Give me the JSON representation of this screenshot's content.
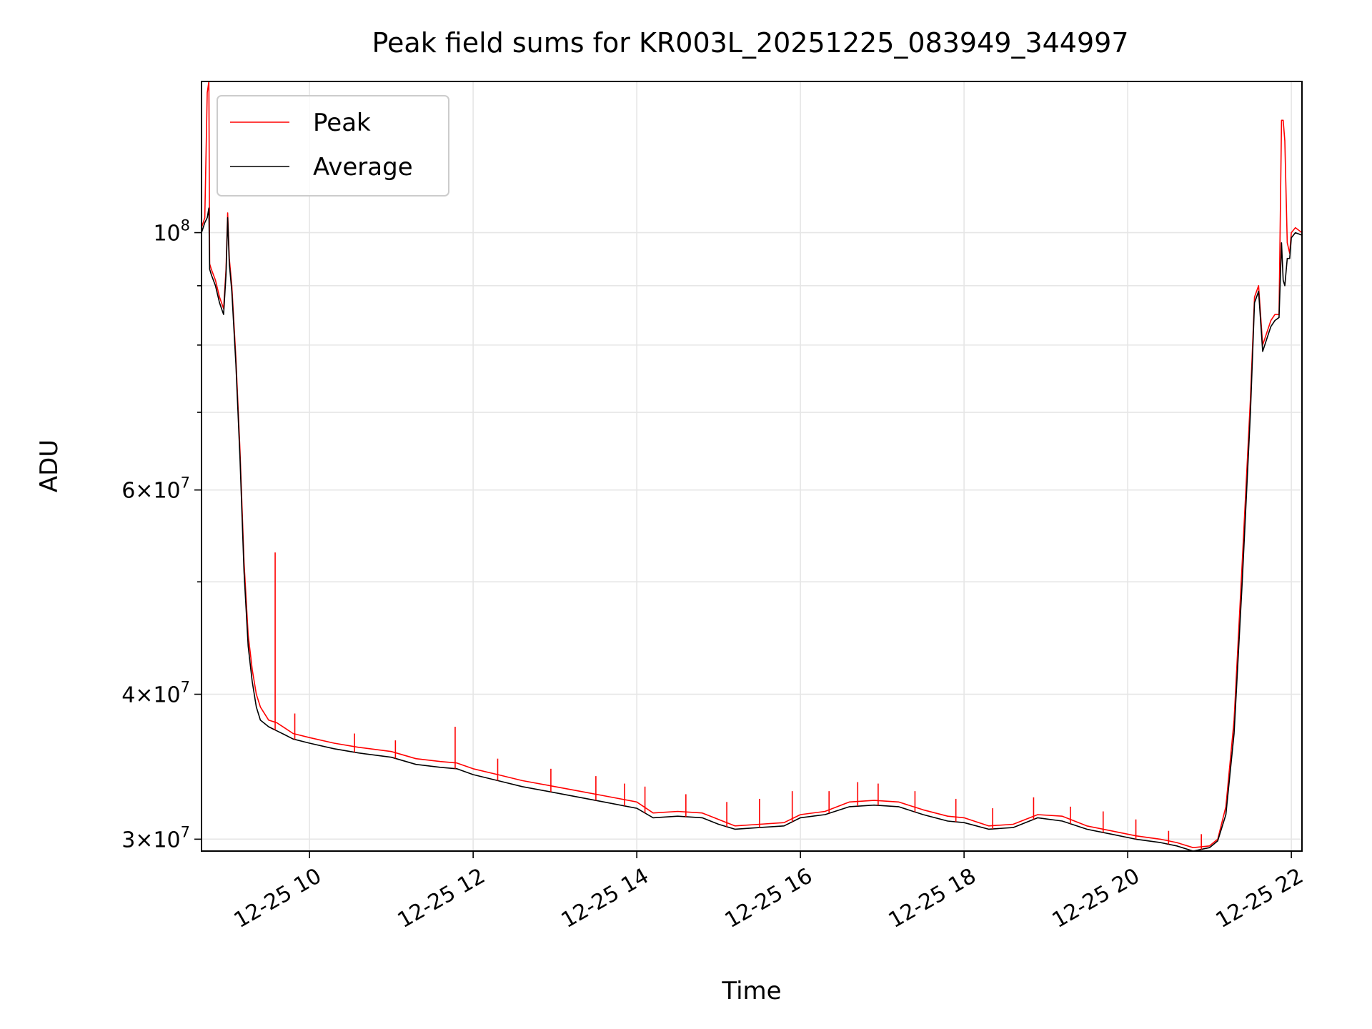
{
  "chart_data": {
    "type": "line",
    "title": "Peak field sums for KR003L_20251225_083949_344997",
    "xlabel": "Time",
    "ylabel": "ADU",
    "yscale": "log",
    "xlim": [
      8.68,
      22.13
    ],
    "ylim": [
      29300000,
      135000000
    ],
    "grid": true,
    "legend_position": "top-left",
    "x_ticks": [
      {
        "value": 10,
        "label": "12-25 10"
      },
      {
        "value": 12,
        "label": "12-25 12"
      },
      {
        "value": 14,
        "label": "12-25 14"
      },
      {
        "value": 16,
        "label": "12-25 16"
      },
      {
        "value": 18,
        "label": "12-25 18"
      },
      {
        "value": 20,
        "label": "12-25 20"
      },
      {
        "value": 22,
        "label": "12-25 22"
      }
    ],
    "y_major_ticks": [
      {
        "value": 30000000,
        "mantissa": "3",
        "exponent": "7"
      },
      {
        "value": 40000000,
        "mantissa": "4",
        "exponent": "7"
      },
      {
        "value": 60000000,
        "mantissa": "6",
        "exponent": "7"
      },
      {
        "value": 100000000,
        "mantissa": "",
        "exponent": "8"
      }
    ],
    "y_minor_ticks": [
      50000000,
      70000000,
      80000000,
      90000000
    ],
    "tick_base": "10",
    "times_sign": "×",
    "series": [
      {
        "name": "Peak",
        "color": "#ff0000",
        "x": [
          8.68,
          8.72,
          8.75,
          8.77,
          8.78,
          8.8,
          8.85,
          8.9,
          8.95,
          8.98,
          9.0,
          9.02,
          9.05,
          9.1,
          9.15,
          9.2,
          9.25,
          9.3,
          9.35,
          9.4,
          9.5,
          9.6,
          9.7,
          9.8,
          10.0,
          10.3,
          10.6,
          11.0,
          11.3,
          11.6,
          11.8,
          12.0,
          12.3,
          12.6,
          13.0,
          13.3,
          13.6,
          14.0,
          14.2,
          14.5,
          14.8,
          15.0,
          15.2,
          15.5,
          15.8,
          16.0,
          16.3,
          16.6,
          16.9,
          17.2,
          17.5,
          17.8,
          18.0,
          18.3,
          18.6,
          18.9,
          19.2,
          19.5,
          19.8,
          20.1,
          20.4,
          20.6,
          20.8,
          21.0,
          21.1,
          21.2,
          21.3,
          21.4,
          21.5,
          21.55,
          21.6,
          21.65,
          21.7,
          21.75,
          21.8,
          21.85,
          21.88,
          21.9,
          21.92,
          21.95,
          21.98,
          22.0,
          22.05,
          22.13
        ],
        "y": [
          101000000,
          103000000,
          132000000,
          135000000,
          94000000,
          93000000,
          91000000,
          88000000,
          86000000,
          93000000,
          104000000,
          95000000,
          90000000,
          78000000,
          65000000,
          52000000,
          45000000,
          42000000,
          40000000,
          39000000,
          38000000,
          37800000,
          37400000,
          37000000,
          36700000,
          36300000,
          36000000,
          35700000,
          35200000,
          35000000,
          34900000,
          34500000,
          34100000,
          33700000,
          33300000,
          33000000,
          32700000,
          32300000,
          31600000,
          31700000,
          31600000,
          31200000,
          30800000,
          30900000,
          31000000,
          31500000,
          31700000,
          32300000,
          32400000,
          32300000,
          31800000,
          31400000,
          31300000,
          30800000,
          30900000,
          31500000,
          31400000,
          30800000,
          30500000,
          30200000,
          30000000,
          29800000,
          29500000,
          29600000,
          30000000,
          32000000,
          38000000,
          52000000,
          72000000,
          88000000,
          90000000,
          80000000,
          82000000,
          84000000,
          85000000,
          85000000,
          125000000,
          125000000,
          120000000,
          98000000,
          96000000,
          100000000,
          101000000,
          100000000
        ]
      },
      {
        "name": "Average",
        "color": "#000000",
        "x": [
          8.68,
          8.72,
          8.75,
          8.77,
          8.78,
          8.8,
          8.85,
          8.9,
          8.95,
          8.98,
          9.0,
          9.02,
          9.05,
          9.1,
          9.15,
          9.2,
          9.25,
          9.3,
          9.35,
          9.4,
          9.5,
          9.6,
          9.7,
          9.8,
          10.0,
          10.3,
          10.6,
          11.0,
          11.3,
          11.6,
          11.8,
          12.0,
          12.3,
          12.6,
          13.0,
          13.3,
          13.6,
          14.0,
          14.2,
          14.5,
          14.8,
          15.0,
          15.2,
          15.5,
          15.8,
          16.0,
          16.3,
          16.6,
          16.9,
          17.2,
          17.5,
          17.8,
          18.0,
          18.3,
          18.6,
          18.9,
          19.2,
          19.5,
          19.8,
          20.1,
          20.4,
          20.6,
          20.8,
          21.0,
          21.1,
          21.2,
          21.3,
          21.4,
          21.5,
          21.55,
          21.6,
          21.65,
          21.7,
          21.75,
          21.8,
          21.85,
          21.88,
          21.9,
          21.92,
          21.95,
          21.98,
          22.0,
          22.05,
          22.13
        ],
        "y": [
          100000000,
          102000000,
          103000000,
          105000000,
          93000000,
          92000000,
          90000000,
          87000000,
          85000000,
          92000000,
          103000000,
          94000000,
          89000000,
          77000000,
          64000000,
          51000000,
          44000000,
          41000000,
          39000000,
          38000000,
          37500000,
          37200000,
          36900000,
          36600000,
          36300000,
          35900000,
          35600000,
          35300000,
          34800000,
          34600000,
          34500000,
          34100000,
          33700000,
          33300000,
          32900000,
          32600000,
          32300000,
          31900000,
          31300000,
          31400000,
          31300000,
          30900000,
          30600000,
          30700000,
          30800000,
          31300000,
          31500000,
          32000000,
          32100000,
          32000000,
          31500000,
          31100000,
          31000000,
          30600000,
          30700000,
          31300000,
          31100000,
          30600000,
          30300000,
          30000000,
          29800000,
          29600000,
          29300000,
          29500000,
          29900000,
          31500000,
          37000000,
          50000000,
          70000000,
          87000000,
          89000000,
          79000000,
          81000000,
          83000000,
          84000000,
          84500000,
          98000000,
          91000000,
          90000000,
          95000000,
          95000000,
          99000000,
          100000000,
          99500000
        ]
      }
    ],
    "peak_spikes": [
      {
        "x": 9.58,
        "y": 53000000
      },
      {
        "x": 9.82,
        "y": 38500000
      },
      {
        "x": 10.55,
        "y": 37000000
      },
      {
        "x": 11.05,
        "y": 36500000
      },
      {
        "x": 11.78,
        "y": 37500000
      },
      {
        "x": 12.3,
        "y": 35200000
      },
      {
        "x": 12.95,
        "y": 34500000
      },
      {
        "x": 13.5,
        "y": 34000000
      },
      {
        "x": 13.85,
        "y": 33500000
      },
      {
        "x": 14.1,
        "y": 33300000
      },
      {
        "x": 14.6,
        "y": 32800000
      },
      {
        "x": 15.1,
        "y": 32300000
      },
      {
        "x": 15.5,
        "y": 32500000
      },
      {
        "x": 15.9,
        "y": 33000000
      },
      {
        "x": 16.35,
        "y": 33000000
      },
      {
        "x": 16.7,
        "y": 33600000
      },
      {
        "x": 16.95,
        "y": 33500000
      },
      {
        "x": 17.4,
        "y": 33000000
      },
      {
        "x": 17.9,
        "y": 32500000
      },
      {
        "x": 18.35,
        "y": 31900000
      },
      {
        "x": 18.85,
        "y": 32600000
      },
      {
        "x": 19.3,
        "y": 32000000
      },
      {
        "x": 19.7,
        "y": 31700000
      },
      {
        "x": 20.1,
        "y": 31200000
      },
      {
        "x": 20.5,
        "y": 30500000
      },
      {
        "x": 20.9,
        "y": 30300000
      }
    ],
    "legend": [
      {
        "label": "Peak",
        "color": "#ff0000"
      },
      {
        "label": "Average",
        "color": "#000000"
      }
    ]
  }
}
